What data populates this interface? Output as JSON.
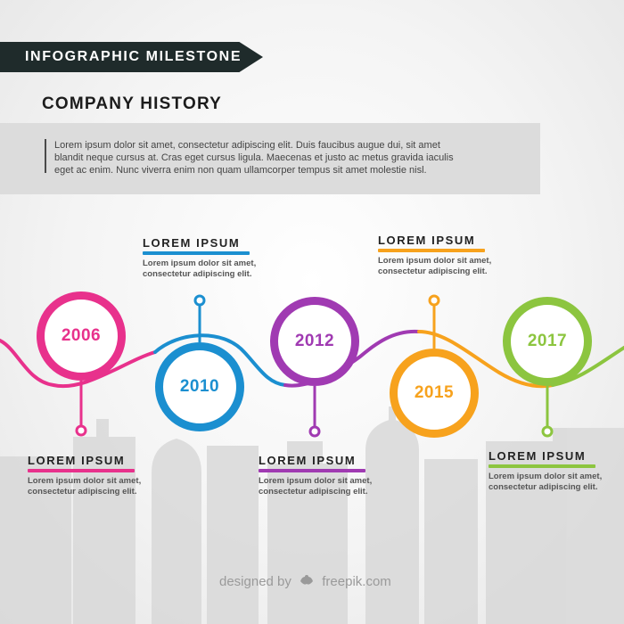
{
  "header": {
    "banner_text": "INFOGRAPHIC MILESTONE",
    "title": "COMPANY HISTORY",
    "intro_lines": [
      "Lorem ipsum dolor sit amet, consectetur adipiscing elit. Duis faucibus augue dui, sit amet",
      "blandit neque cursus at. Cras eget cursus ligula. Maecenas et justo ac metus gravida iaculis",
      "eget ac enim. Nunc viverra enim non quam ullamcorper tempus sit amet molestie nisl."
    ]
  },
  "milestones": [
    {
      "year": "2006",
      "color": "#e8318c",
      "side": "below",
      "title": "LOREM IPSUM",
      "desc_lines": [
        "Lorem ipsum dolor sit amet,",
        "consectetur adipiscing elit."
      ]
    },
    {
      "year": "2010",
      "color": "#1b8fd0",
      "side": "above",
      "title": "LOREM IPSUM",
      "desc_lines": [
        "Lorem ipsum dolor sit amet,",
        "consectetur adipiscing elit."
      ]
    },
    {
      "year": "2012",
      "color": "#a03ab2",
      "side": "below",
      "title": "LOREM IPSUM",
      "desc_lines": [
        "Lorem ipsum dolor sit amet,",
        "consectetur adipiscing elit."
      ]
    },
    {
      "year": "2015",
      "color": "#f7a21d",
      "side": "above",
      "title": "LOREM IPSUM",
      "desc_lines": [
        "Lorem ipsum dolor sit amet,",
        "consectetur adipiscing elit."
      ]
    },
    {
      "year": "2017",
      "color": "#8cc53f",
      "side": "below",
      "title": "LOREM IPSUM",
      "desc_lines": [
        "Lorem ipsum dolor sit amet,",
        "consectetur adipiscing elit."
      ]
    }
  ],
  "footer": {
    "credit_prefix": "designed by",
    "credit_brand": "freepik.com",
    "credit_icon": "freepik-logo-icon"
  }
}
